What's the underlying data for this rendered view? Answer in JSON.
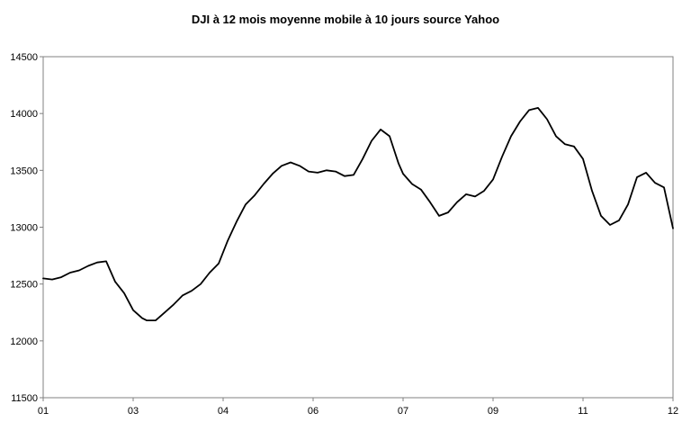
{
  "chart_data": {
    "type": "line",
    "title": "DJI à 12 mois moyenne mobile à 10 jours source Yahoo",
    "xlabel": "",
    "ylabel": "",
    "ylim": [
      11500,
      14500
    ],
    "yticks": [
      "11500",
      "12000",
      "12500",
      "13000",
      "13500",
      "14000",
      "14500"
    ],
    "xticks": [
      "01",
      "03",
      "04",
      "06",
      "07",
      "09",
      "11",
      "12"
    ],
    "xlim": [
      0,
      14
    ],
    "grid": false,
    "legend": "none",
    "line_color": "#000000",
    "series": [
      {
        "x": [
          0,
          0.2,
          0.4,
          0.6,
          0.8,
          1.0,
          1.2,
          1.4,
          1.6,
          1.8,
          2.0,
          2.2,
          2.3,
          2.5,
          2.7,
          2.9,
          3.0,
          3.1,
          3.3,
          3.5,
          3.7,
          3.9,
          4.1,
          4.3,
          4.5,
          4.7,
          4.9,
          5.1,
          5.3,
          5.5,
          5.7,
          5.9,
          6.1,
          6.3,
          6.5,
          6.7,
          6.9,
          7.1,
          7.3,
          7.5,
          7.7,
          7.8,
          7.9,
          8.0,
          8.2,
          8.4,
          8.6,
          8.8,
          9.0,
          9.2,
          9.4,
          9.6,
          9.8,
          10.0,
          10.2,
          10.4,
          10.6,
          10.8,
          11.0,
          11.2,
          11.4,
          11.6,
          11.8,
          12.0,
          12.2,
          12.4,
          12.6,
          12.8,
          13.0,
          13.2,
          13.4,
          13.6,
          13.8,
          14.0
        ],
        "y": [
          12550,
          12540,
          12560,
          12600,
          12620,
          12660,
          12690,
          12700,
          12520,
          12420,
          12270,
          12200,
          12180,
          12180,
          12250,
          12320,
          12360,
          12400,
          12440,
          12500,
          12600,
          12680,
          12880,
          13050,
          13200,
          13280,
          13380,
          13470,
          13540,
          13570,
          13540,
          13490,
          13480,
          13500,
          13490,
          13450,
          13460,
          13600,
          13760,
          13860,
          13800,
          13680,
          13560,
          13470,
          13380,
          13330,
          13220,
          13100,
          13130,
          13220,
          13290,
          13270,
          13320,
          13420,
          13620,
          13800,
          13930,
          14030,
          14050,
          13950,
          13800,
          13730,
          13710,
          13600,
          13320,
          13100,
          13020,
          13060,
          13200,
          13440,
          13480,
          13390,
          13350,
          12990
        ]
      }
    ]
  }
}
